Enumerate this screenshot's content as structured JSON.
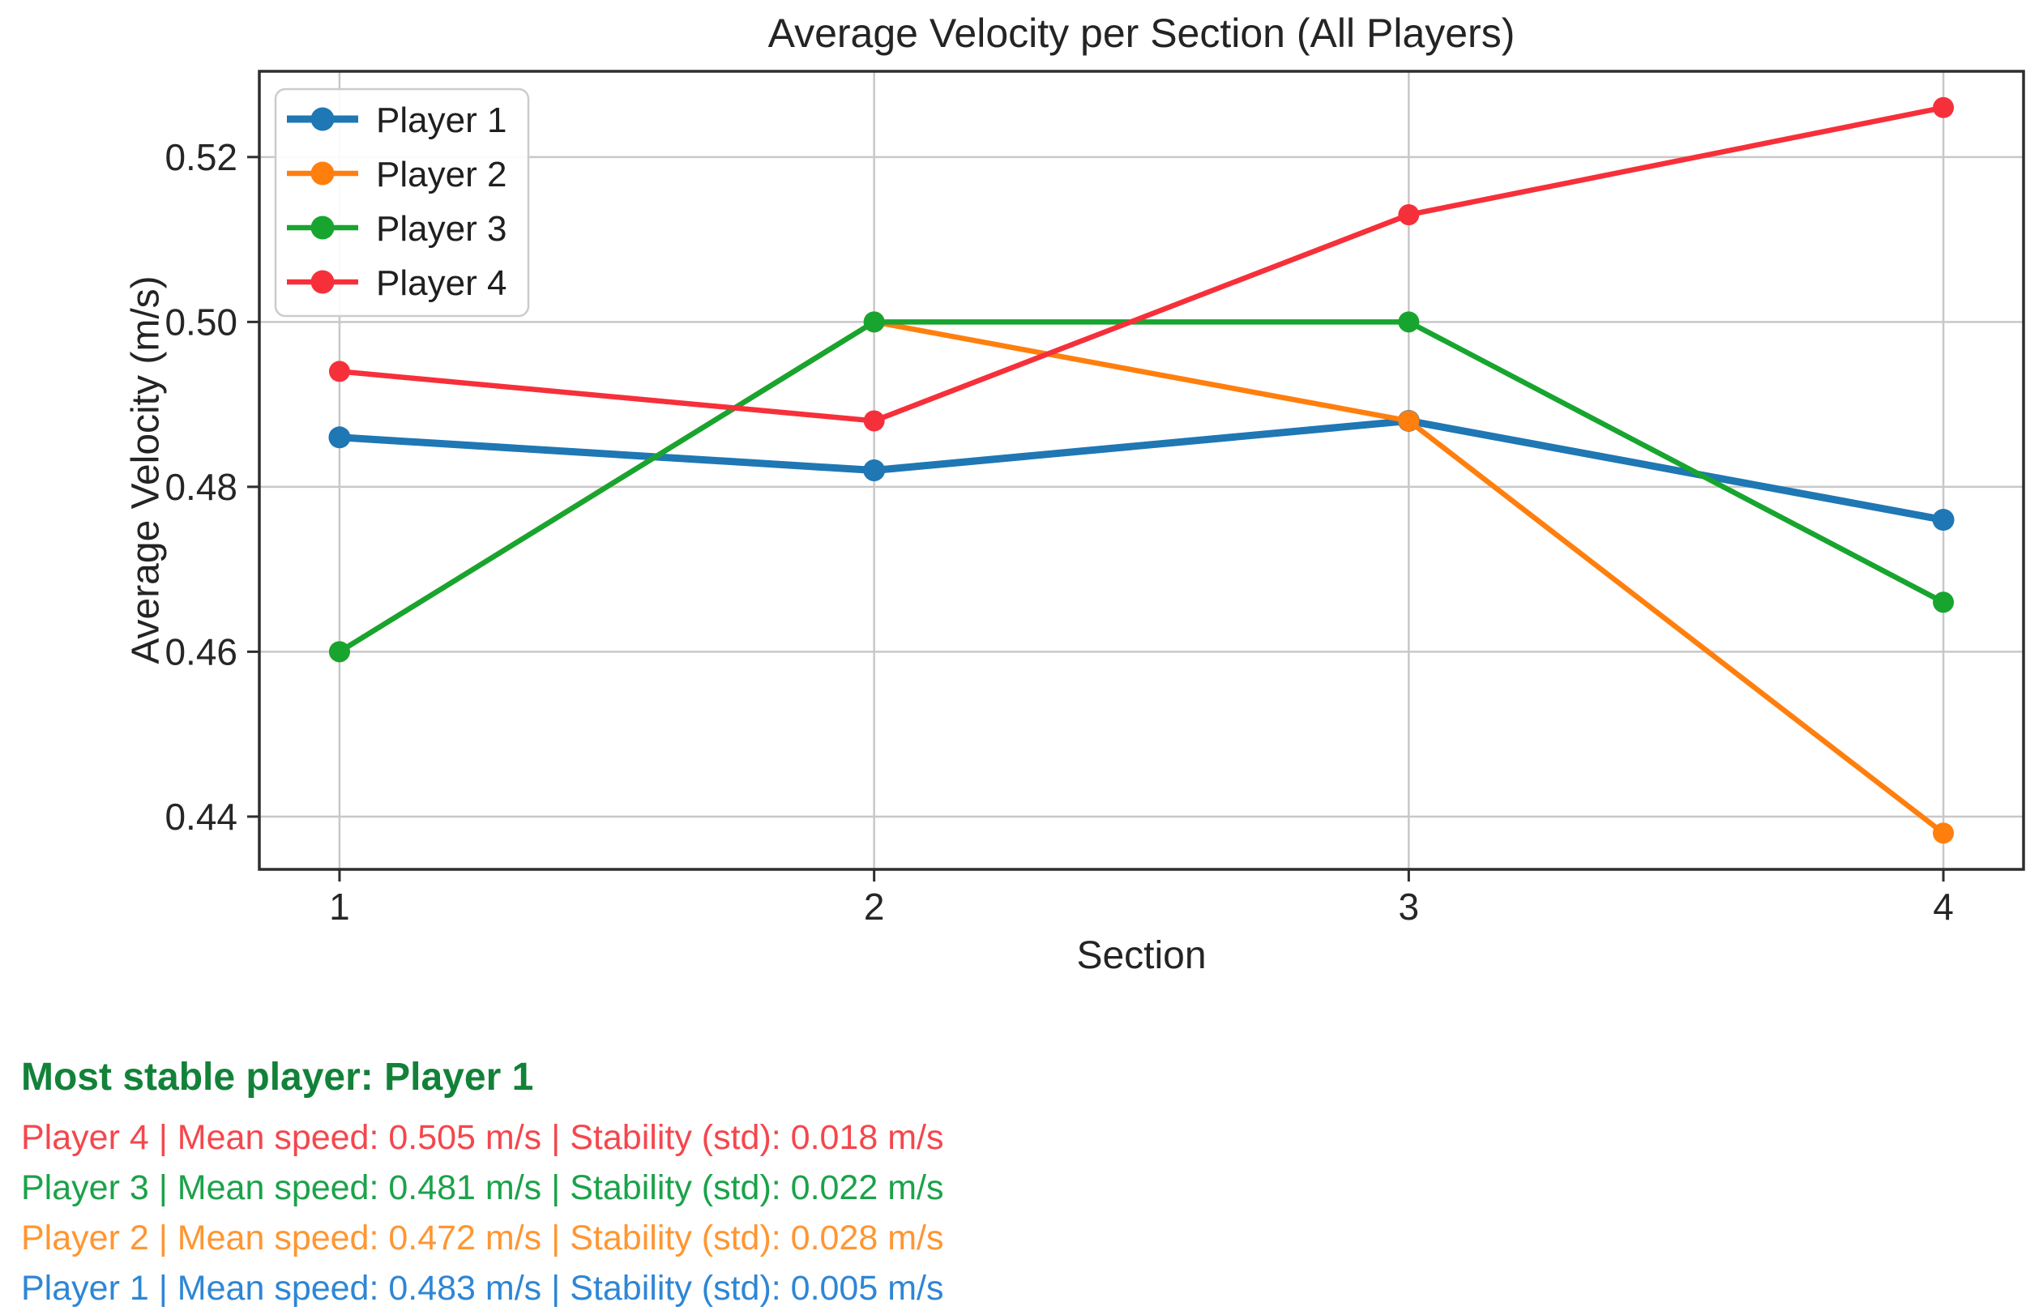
{
  "chart_data": {
    "type": "line",
    "title": "Average Velocity per Section (All Players)",
    "xlabel": "Section",
    "ylabel": "Average Velocity (m/s)",
    "x": [
      1,
      2,
      3,
      4
    ],
    "x_tick_labels": [
      "1",
      "2",
      "3",
      "4"
    ],
    "y_ticks": [
      0.44,
      0.46,
      0.48,
      0.5,
      0.52
    ],
    "y_tick_labels": [
      "0.44",
      "0.46",
      "0.48",
      "0.50",
      "0.52"
    ],
    "xlim": [
      0.85,
      4.15
    ],
    "ylim": [
      0.4336,
      0.5304
    ],
    "grid": true,
    "grid_color": "#c8c8c8",
    "spine_color": "#2e2e2e",
    "tick_label_color": "#262626",
    "legend_position": "upper-left",
    "series": [
      {
        "name": "Player 1",
        "color": "#1f77b4",
        "values": [
          0.486,
          0.482,
          0.488,
          0.476
        ],
        "emphasized": true
      },
      {
        "name": "Player 2",
        "color": "#ff7f0e",
        "values": [
          0.46,
          0.5,
          0.488,
          0.438
        ],
        "emphasized": false
      },
      {
        "name": "Player 3",
        "color": "#17a52f",
        "values": [
          0.46,
          0.5,
          0.5,
          0.466
        ],
        "emphasized": false
      },
      {
        "name": "Player 4",
        "color": "#f6303a",
        "values": [
          0.494,
          0.488,
          0.513,
          0.526
        ],
        "emphasized": false
      }
    ]
  },
  "stats": {
    "headline": {
      "text": "Most stable player: Player 1",
      "color": "#128239"
    },
    "lines": [
      {
        "player": "Player 4",
        "mean_speed": "0.505 m/s",
        "stability_std": "0.018 m/s",
        "color": "#f4474d",
        "text": "Player 4 | Mean speed: 0.505 m/s | Stability (std): 0.018 m/s"
      },
      {
        "player": "Player 3",
        "mean_speed": "0.481 m/s",
        "stability_std": "0.022 m/s",
        "color": "#1ba24a",
        "text": "Player 3 | Mean speed: 0.481 m/s | Stability (std): 0.022 m/s"
      },
      {
        "player": "Player 2",
        "mean_speed": "0.472 m/s",
        "stability_std": "0.028 m/s",
        "color": "#ff9632",
        "text": "Player 2 | Mean speed: 0.472 m/s | Stability (std): 0.028 m/s"
      },
      {
        "player": "Player 1",
        "mean_speed": "0.483 m/s",
        "stability_std": "0.005 m/s",
        "color": "#2e86d5",
        "text": "Player 1 | Mean speed: 0.483 m/s | Stability (std): 0.005 m/s"
      }
    ]
  }
}
